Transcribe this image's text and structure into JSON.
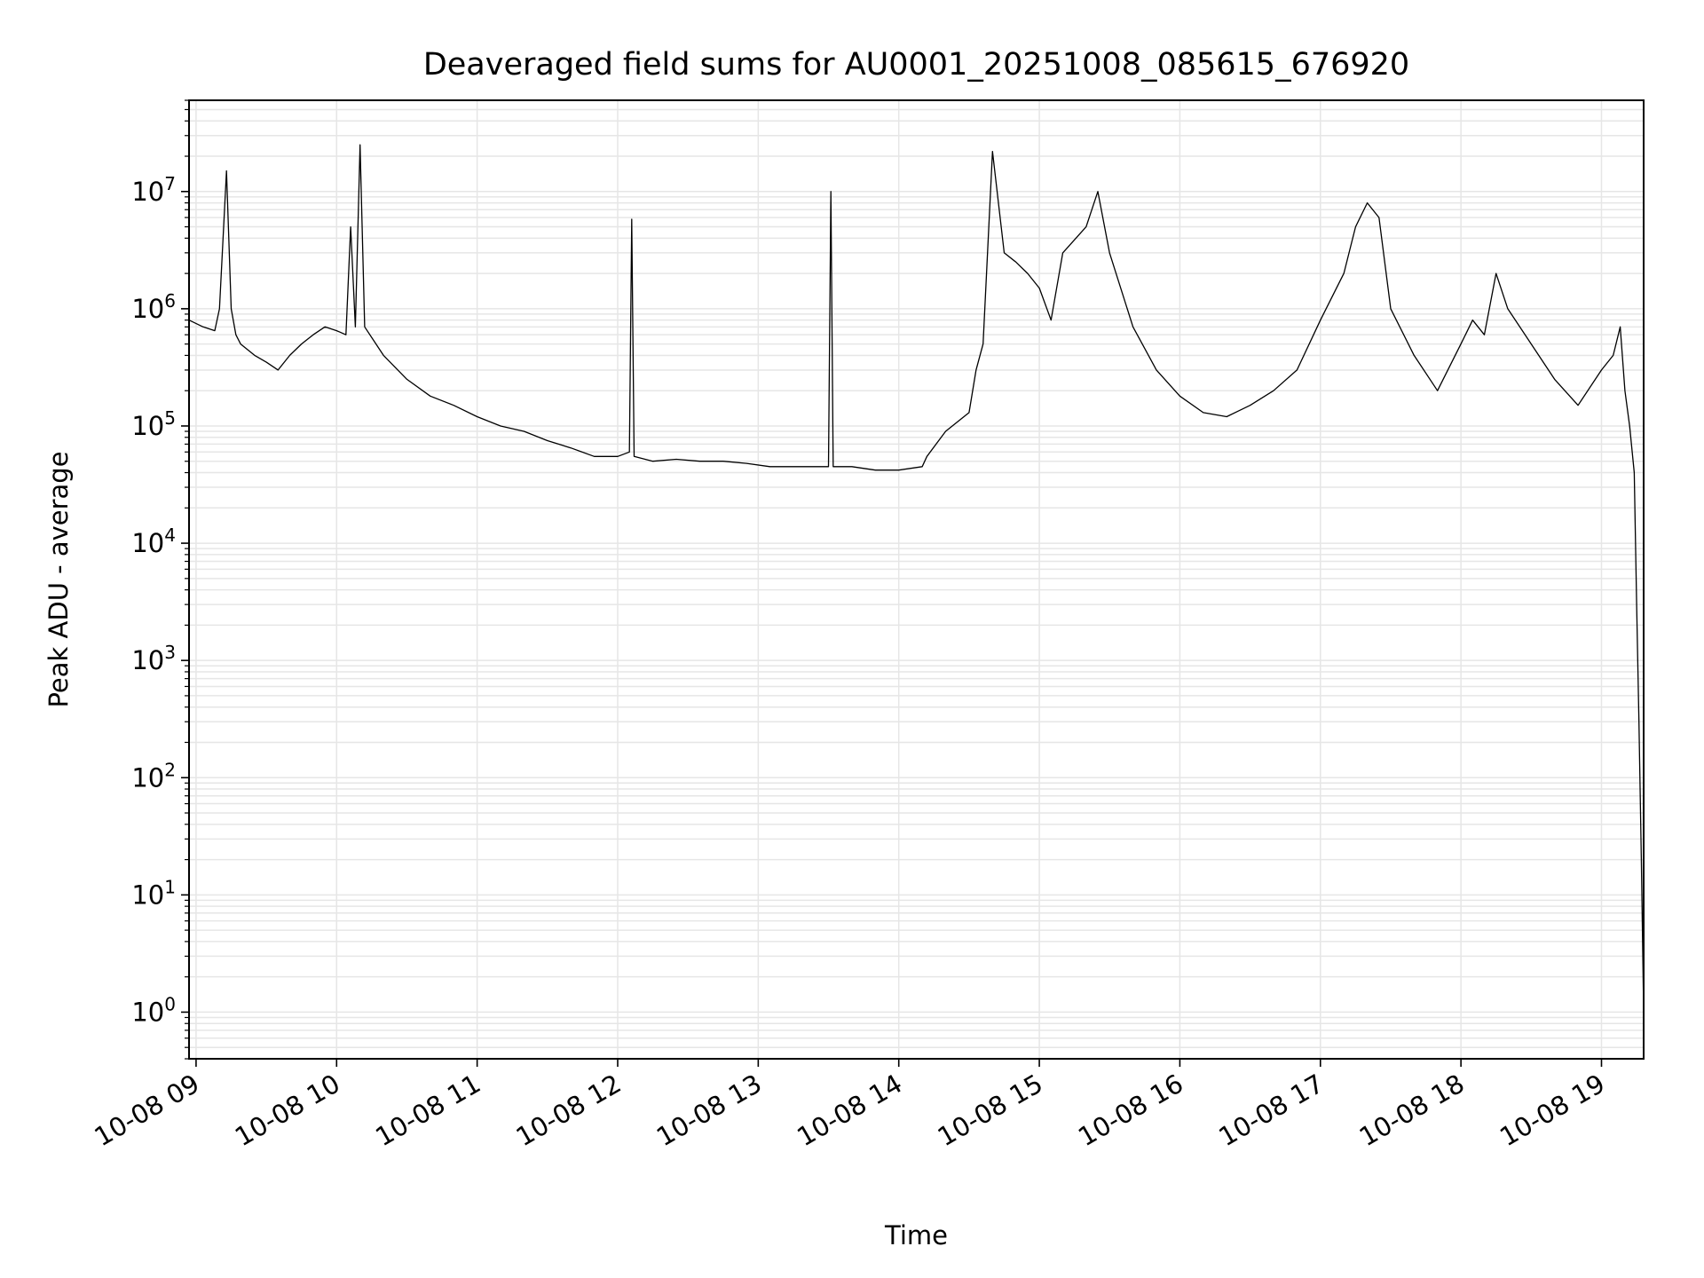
{
  "chart_data": {
    "type": "line",
    "title": "Deaveraged field sums for AU0001_20251008_085615_676920",
    "xlabel": "Time",
    "ylabel": "Peak ADU - average",
    "y_scale": "log",
    "ylim": [
      0.4,
      60000000
    ],
    "xlim": [
      "2025-10-08 08:57",
      "2025-10-08 19:18"
    ],
    "grid": true,
    "line_color": "#000000",
    "grid_color": "#e6e6e6",
    "x_ticks": [
      {
        "label": "10-08 09",
        "value": "2025-10-08 09:00"
      },
      {
        "label": "10-08 10",
        "value": "2025-10-08 10:00"
      },
      {
        "label": "10-08 11",
        "value": "2025-10-08 11:00"
      },
      {
        "label": "10-08 12",
        "value": "2025-10-08 12:00"
      },
      {
        "label": "10-08 13",
        "value": "2025-10-08 13:00"
      },
      {
        "label": "10-08 14",
        "value": "2025-10-08 14:00"
      },
      {
        "label": "10-08 15",
        "value": "2025-10-08 15:00"
      },
      {
        "label": "10-08 16",
        "value": "2025-10-08 16:00"
      },
      {
        "label": "10-08 17",
        "value": "2025-10-08 17:00"
      },
      {
        "label": "10-08 18",
        "value": "2025-10-08 18:00"
      },
      {
        "label": "10-08 19",
        "value": "2025-10-08 19:00"
      }
    ],
    "y_ticks": [
      {
        "base": "10",
        "exp": "0",
        "value": 1
      },
      {
        "base": "10",
        "exp": "1",
        "value": 10
      },
      {
        "base": "10",
        "exp": "2",
        "value": 100
      },
      {
        "base": "10",
        "exp": "3",
        "value": 1000
      },
      {
        "base": "10",
        "exp": "4",
        "value": 10000
      },
      {
        "base": "10",
        "exp": "5",
        "value": 100000
      },
      {
        "base": "10",
        "exp": "6",
        "value": 1000000
      },
      {
        "base": "10",
        "exp": "7",
        "value": 10000000
      }
    ],
    "series": [
      {
        "color": "#000000",
        "x": [
          "2025-10-08 08:57",
          "2025-10-08 09:03",
          "2025-10-08 09:08",
          "2025-10-08 09:10",
          "2025-10-08 09:13",
          "2025-10-08 09:15",
          "2025-10-08 09:17",
          "2025-10-08 09:19",
          "2025-10-08 09:25",
          "2025-10-08 09:30",
          "2025-10-08 09:35",
          "2025-10-08 09:40",
          "2025-10-08 09:45",
          "2025-10-08 09:50",
          "2025-10-08 09:55",
          "2025-10-08 10:00",
          "2025-10-08 10:04",
          "2025-10-08 10:06",
          "2025-10-08 10:08",
          "2025-10-08 10:10",
          "2025-10-08 10:12",
          "2025-10-08 10:20",
          "2025-10-08 10:30",
          "2025-10-08 10:40",
          "2025-10-08 10:50",
          "2025-10-08 11:00",
          "2025-10-08 11:10",
          "2025-10-08 11:20",
          "2025-10-08 11:30",
          "2025-10-08 11:40",
          "2025-10-08 11:50",
          "2025-10-08 12:00",
          "2025-10-08 12:05",
          "2025-10-08 12:06",
          "2025-10-08 12:07",
          "2025-10-08 12:15",
          "2025-10-08 12:25",
          "2025-10-08 12:35",
          "2025-10-08 12:45",
          "2025-10-08 12:55",
          "2025-10-08 13:05",
          "2025-10-08 13:15",
          "2025-10-08 13:25",
          "2025-10-08 13:30",
          "2025-10-08 13:31",
          "2025-10-08 13:32",
          "2025-10-08 13:40",
          "2025-10-08 13:50",
          "2025-10-08 14:00",
          "2025-10-08 14:10",
          "2025-10-08 14:12",
          "2025-10-08 14:20",
          "2025-10-08 14:30",
          "2025-10-08 14:33",
          "2025-10-08 14:36",
          "2025-10-08 14:40",
          "2025-10-08 14:45",
          "2025-10-08 14:50",
          "2025-10-08 14:55",
          "2025-10-08 15:00",
          "2025-10-08 15:05",
          "2025-10-08 15:10",
          "2025-10-08 15:20",
          "2025-10-08 15:25",
          "2025-10-08 15:30",
          "2025-10-08 15:40",
          "2025-10-08 15:50",
          "2025-10-08 16:00",
          "2025-10-08 16:10",
          "2025-10-08 16:20",
          "2025-10-08 16:30",
          "2025-10-08 16:40",
          "2025-10-08 16:50",
          "2025-10-08 17:00",
          "2025-10-08 17:10",
          "2025-10-08 17:15",
          "2025-10-08 17:20",
          "2025-10-08 17:25",
          "2025-10-08 17:30",
          "2025-10-08 17:40",
          "2025-10-08 17:50",
          "2025-10-08 18:00",
          "2025-10-08 18:05",
          "2025-10-08 18:10",
          "2025-10-08 18:15",
          "2025-10-08 18:20",
          "2025-10-08 18:30",
          "2025-10-08 18:40",
          "2025-10-08 18:50",
          "2025-10-08 19:00",
          "2025-10-08 19:05",
          "2025-10-08 19:08",
          "2025-10-08 19:10",
          "2025-10-08 19:12",
          "2025-10-08 19:14",
          "2025-10-08 19:15",
          "2025-10-08 19:16",
          "2025-10-08 19:17",
          "2025-10-08 19:18"
        ],
        "y": [
          800000,
          700000,
          650000,
          1000000,
          15000000,
          1000000,
          600000,
          500000,
          400000,
          350000,
          300000,
          400000,
          500000,
          600000,
          700000,
          650000,
          600000,
          5000000,
          700000,
          25000000,
          700000,
          400000,
          250000,
          180000,
          150000,
          120000,
          100000,
          90000,
          75000,
          65000,
          55000,
          55000,
          60000,
          5800000,
          55000,
          50000,
          52000,
          50000,
          50000,
          48000,
          45000,
          45000,
          45000,
          45000,
          10000000,
          45000,
          45000,
          42000,
          42000,
          45000,
          55000,
          90000,
          130000,
          300000,
          500000,
          22000000,
          3000000,
          2500000,
          2000000,
          1500000,
          800000,
          3000000,
          5000000,
          10000000,
          3000000,
          700000,
          300000,
          180000,
          130000,
          120000,
          150000,
          200000,
          300000,
          800000,
          2000000,
          5000000,
          8000000,
          6000000,
          1000000,
          400000,
          200000,
          500000,
          800000,
          600000,
          2000000,
          1000000,
          500000,
          250000,
          150000,
          300000,
          400000,
          700000,
          200000,
          100000,
          40000,
          3000,
          300,
          20,
          1
        ]
      }
    ]
  }
}
